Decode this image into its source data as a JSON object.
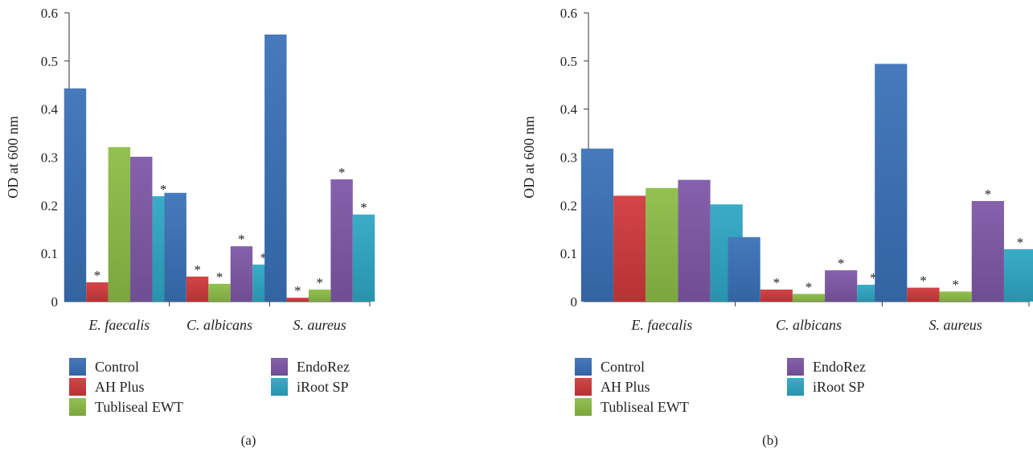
{
  "chart_data": [
    {
      "panel_label": "(a)",
      "type": "bar",
      "title": "",
      "xlabel": "",
      "ylabel": "OD at 600 nm",
      "ylim": [
        0,
        0.6
      ],
      "yticks": [
        "0",
        "0.1",
        "0.2",
        "0.3",
        "0.4",
        "0.5",
        "0.6"
      ],
      "categories": [
        "E. faecalis",
        "C. albicans",
        "S. aureus"
      ],
      "series": [
        {
          "name": "Control",
          "values": [
            0.443,
            0.226,
            0.555
          ],
          "significant": [
            false,
            false,
            false
          ]
        },
        {
          "name": "AH Plus",
          "values": [
            0.04,
            0.052,
            0.008
          ],
          "significant": [
            true,
            true,
            true
          ]
        },
        {
          "name": "Tubliseal EWT",
          "values": [
            0.321,
            0.037,
            0.025
          ],
          "significant": [
            false,
            true,
            true
          ]
        },
        {
          "name": "EndoRez",
          "values": [
            0.301,
            0.115,
            0.254
          ],
          "significant": [
            false,
            true,
            true
          ]
        },
        {
          "name": "iRoot SP",
          "values": [
            0.219,
            0.077,
            0.181
          ],
          "significant": [
            true,
            true,
            true
          ]
        }
      ],
      "significance_marker": "*",
      "legend_placement": "bottom",
      "grid": false
    },
    {
      "panel_label": "(b)",
      "type": "bar",
      "title": "",
      "xlabel": "",
      "ylabel": "OD at 600 nm",
      "ylim": [
        0,
        0.6
      ],
      "yticks": [
        "0",
        "0.1",
        "0.2",
        "0.3",
        "0.4",
        "0.5",
        "0.6"
      ],
      "categories": [
        "E. faecalis",
        "C. albicans",
        "S. aureus"
      ],
      "series": [
        {
          "name": "Control",
          "values": [
            0.318,
            0.134,
            0.494
          ],
          "significant": [
            false,
            false,
            false
          ]
        },
        {
          "name": "AH Plus",
          "values": [
            0.22,
            0.025,
            0.029
          ],
          "significant": [
            false,
            true,
            true
          ]
        },
        {
          "name": "Tubliseal EWT",
          "values": [
            0.236,
            0.016,
            0.021
          ],
          "significant": [
            false,
            true,
            true
          ]
        },
        {
          "name": "EndoRez",
          "values": [
            0.253,
            0.065,
            0.209
          ],
          "significant": [
            false,
            true,
            true
          ]
        },
        {
          "name": "iRoot SP",
          "values": [
            0.202,
            0.035,
            0.109
          ],
          "significant": [
            false,
            true,
            true
          ]
        }
      ],
      "significance_marker": "*",
      "legend_placement": "bottom",
      "grid": false
    }
  ],
  "colors": {
    "Control": "#3a72b8",
    "AH Plus": "#d0393a",
    "Tubliseal EWT": "#8cbd46",
    "EndoRez": "#7e57a7",
    "iRoot SP": "#2ea7c4"
  }
}
